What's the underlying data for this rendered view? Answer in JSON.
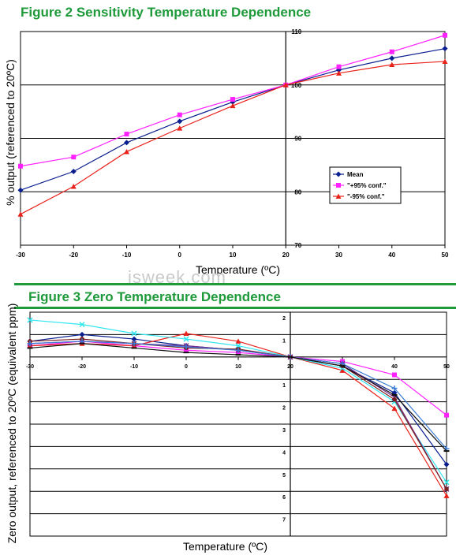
{
  "watermark": "isweek.com",
  "figure2": {
    "heading": "Figure 2 Sensitivity Temperature Dependence",
    "colors": {
      "mean": "#0a1f8f",
      "plus": "#ff22ff",
      "minus": "#e8211a"
    }
  },
  "figure3": {
    "heading": "Figure 3 Zero Temperature Dependence"
  },
  "chart_data": [
    {
      "type": "line",
      "title": "Figure 2 Sensitivity Temperature Dependence",
      "xlabel": "Temperature (ºC)",
      "ylabel": "% output (referenced to 20ºC)",
      "x": [
        -30,
        -20,
        -10,
        0,
        10,
        20,
        30,
        40,
        50
      ],
      "xlim": [
        -30,
        50
      ],
      "ylim": [
        70,
        110
      ],
      "x_ticks": [
        "-30",
        "-20",
        "-10",
        "0",
        "10",
        "20",
        "30",
        "40",
        "50"
      ],
      "y_ticks": [
        "70",
        "80",
        "90",
        "100",
        "110"
      ],
      "grid": "horizontal",
      "legend_position": "right",
      "series": [
        {
          "name": "Mean",
          "color": "#0a1f8f",
          "marker": "diamond",
          "values": [
            80.3,
            83.8,
            89.2,
            93.2,
            96.8,
            100,
            102.8,
            105,
            106.8
          ]
        },
        {
          "name": "\"+95% conf.\"",
          "color": "#ff22ff",
          "marker": "square",
          "values": [
            84.8,
            86.5,
            90.8,
            94.4,
            97.3,
            100,
            103.4,
            106.2,
            109.3
          ]
        },
        {
          "name": "\"-95% conf.\"",
          "color": "#e8211a",
          "marker": "triangle",
          "values": [
            75.8,
            81.0,
            87.5,
            91.9,
            96.1,
            100,
            102.2,
            103.8,
            104.4
          ]
        }
      ]
    },
    {
      "type": "line",
      "title": "Figure 3 Zero Temperature Dependence",
      "xlabel": "Temperature (ºC)",
      "ylabel": "Zero output, referenced to 20ºC (equivalent ppm)",
      "x": [
        -30,
        -20,
        -10,
        0,
        10,
        20,
        30,
        40,
        50
      ],
      "xlim": [
        -30,
        50
      ],
      "ylim": [
        -8,
        2
      ],
      "x_ticks": [
        "-30",
        "-20",
        "-10",
        "0",
        "10",
        "20",
        "30",
        "40",
        "50"
      ],
      "y_ticks": [
        "2",
        "1",
        "0",
        "-1",
        "-2",
        "-3",
        "-4",
        "-5",
        "-6",
        "-7",
        "-8"
      ],
      "y_tick_labels_shown": [
        "2",
        "1",
        "",
        "1",
        "2",
        "3",
        "4",
        "5",
        "6",
        "7",
        ""
      ],
      "grid": "horizontal",
      "series": [
        {
          "color": "#0a1f8f",
          "marker": "diamond",
          "values": [
            0.7,
            1.0,
            0.8,
            0.5,
            0.3,
            0,
            -0.4,
            -1.6,
            -4.8
          ]
        },
        {
          "color": "#ff22ff",
          "marker": "square",
          "values": [
            0.5,
            0.7,
            0.5,
            0.3,
            0.2,
            0,
            -0.2,
            -0.8,
            -2.6
          ]
        },
        {
          "color": "#e8211a",
          "marker": "triangle",
          "values": [
            0.5,
            0.6,
            0.5,
            1.05,
            0.7,
            0,
            -0.6,
            -2.3,
            -6.2
          ]
        },
        {
          "color": "#33e6f0",
          "marker": "x",
          "values": [
            1.65,
            1.45,
            1.05,
            0.8,
            0.5,
            0,
            -0.5,
            -2.0,
            -5.6
          ]
        },
        {
          "color": "#7a2a8a",
          "marker": "star",
          "values": [
            0.6,
            0.7,
            0.6,
            0.5,
            0.3,
            0,
            -0.3,
            -1.8,
            -5.9
          ]
        },
        {
          "color": "#7a1f1f",
          "marker": "circle",
          "values": [
            0.7,
            0.8,
            0.6,
            0.4,
            0.35,
            0,
            -0.4,
            -1.9,
            -5.9
          ]
        },
        {
          "color": "#3a7bd5",
          "marker": "plus",
          "values": [
            0.6,
            0.7,
            0.6,
            0.45,
            0.3,
            0,
            -0.3,
            -1.4,
            -4.1
          ]
        },
        {
          "color": "#111111",
          "marker": "dash",
          "values": [
            0.4,
            0.6,
            0.4,
            0.2,
            0.1,
            0,
            -0.4,
            -1.7,
            -4.2
          ]
        }
      ]
    }
  ]
}
